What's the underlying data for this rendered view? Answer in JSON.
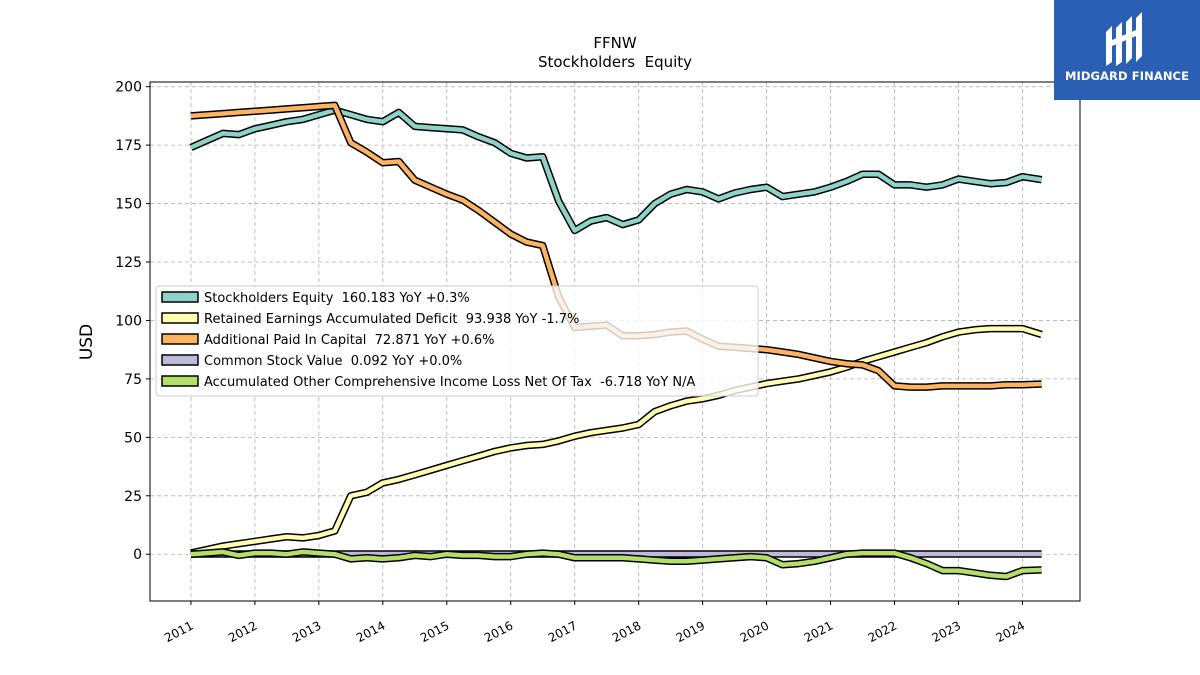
{
  "brand": {
    "name": "MIDGARD FINANCE",
    "color": "#2b5fb3",
    "icon": "midgard-logo-icon"
  },
  "chart_data": {
    "type": "line",
    "title": "FFNW",
    "subtitle": "Stockholders  Equity",
    "ylabel": "USD",
    "xlabel": "",
    "ylim": [
      -20,
      202
    ],
    "xlim": [
      2010.36,
      2024.9
    ],
    "yticks": [
      0,
      25,
      50,
      75,
      100,
      125,
      150,
      175,
      200
    ],
    "xticks": [
      "2011",
      "2012",
      "2013",
      "2014",
      "2015",
      "2016",
      "2017",
      "2018",
      "2019",
      "2020",
      "2021",
      "2022",
      "2023",
      "2024"
    ],
    "grid": true,
    "legend_position": "center-left",
    "x": [
      2011.0,
      2011.25,
      2011.5,
      2011.75,
      2012.0,
      2012.25,
      2012.5,
      2012.75,
      2013.0,
      2013.25,
      2013.5,
      2013.75,
      2014.0,
      2014.25,
      2014.5,
      2014.75,
      2015.0,
      2015.25,
      2015.5,
      2015.75,
      2016.0,
      2016.25,
      2016.5,
      2016.75,
      2017.0,
      2017.25,
      2017.5,
      2017.75,
      2018.0,
      2018.25,
      2018.5,
      2018.75,
      2019.0,
      2019.25,
      2019.5,
      2019.75,
      2020.0,
      2020.25,
      2020.5,
      2020.75,
      2021.0,
      2021.25,
      2021.5,
      2021.75,
      2022.0,
      2022.25,
      2022.5,
      2022.75,
      2023.0,
      2023.25,
      2023.5,
      2023.75,
      2024.0,
      2024.3
    ],
    "series": [
      {
        "name": "Stockholders Equity",
        "legend": "Stockholders Equity  160.183 YoY +0.3%",
        "color": "#8dd3c7",
        "values": [
          174,
          177,
          180,
          179.5,
          182,
          183.5,
          185,
          186,
          188,
          190,
          188,
          186,
          185,
          189,
          183,
          182.5,
          182,
          181.5,
          178.5,
          176,
          171.5,
          169.5,
          170,
          151,
          138.5,
          142.5,
          144,
          141,
          143,
          150,
          154,
          156,
          155,
          152,
          154.5,
          156,
          157,
          153,
          154,
          155,
          157,
          159.5,
          162.5,
          162.5,
          158,
          158,
          157,
          158,
          160.5,
          159.5,
          158.5,
          159,
          161.5,
          160.2
        ]
      },
      {
        "name": "Retained Earnings Accumulated Deficit",
        "legend": "Retained Earnings Accumulated Deficit  93.938 YoY -1.7%",
        "color": "#ffffb3",
        "values": [
          0.5,
          2,
          3.5,
          4.5,
          5.5,
          6.5,
          7.5,
          7,
          8,
          10,
          25,
          26.5,
          30.5,
          32,
          34,
          36,
          38,
          40,
          42,
          44,
          45.5,
          46.5,
          47,
          48.5,
          50.5,
          52,
          53,
          54,
          55.5,
          61,
          63.5,
          65.5,
          66.5,
          68,
          70,
          71.5,
          73,
          74,
          75,
          76.5,
          78,
          80,
          82.5,
          84.5,
          86.5,
          88.5,
          90.5,
          93,
          95,
          96,
          96.5,
          96.5,
          96.5,
          94
        ]
      },
      {
        "name": "Additional Paid In Capital",
        "legend": "Additional Paid In Capital  72.871 YoY +0.6%",
        "color": "#fdb462",
        "values": [
          187.5,
          188,
          188.5,
          189,
          189.5,
          190,
          190.5,
          191,
          191.5,
          192,
          176,
          172,
          167.5,
          168,
          160,
          157,
          154,
          151.5,
          147,
          142,
          137,
          133.5,
          132,
          110,
          97,
          97.5,
          98,
          93.5,
          93.5,
          94,
          95,
          95.5,
          92,
          89,
          88.5,
          88,
          87.5,
          86.5,
          85.5,
          84,
          82.5,
          81.5,
          81,
          78.5,
          72,
          71.5,
          71.5,
          72,
          72,
          72,
          72,
          72.5,
          72.5,
          72.8
        ]
      },
      {
        "name": "Common Stock Value",
        "legend": "Common Stock Value  0.092 YoY +0.0%",
        "color": "#bebada",
        "values": [
          0.1,
          0.1,
          0.1,
          0.1,
          0.1,
          0.1,
          0.1,
          0.1,
          0.1,
          0.1,
          0.1,
          0.1,
          0.1,
          0.1,
          0.1,
          0.1,
          0.1,
          0.1,
          0.1,
          0.1,
          0.1,
          0.1,
          0.1,
          0.1,
          0.1,
          0.1,
          0.1,
          0.1,
          0.1,
          0.1,
          0.1,
          0.1,
          0.1,
          0.1,
          0.1,
          0.1,
          0.1,
          0.1,
          0.1,
          0.1,
          0.1,
          0.1,
          0.1,
          0.1,
          0.1,
          0.1,
          0.1,
          0.1,
          0.1,
          0.1,
          0.1,
          0.1,
          0.1,
          0.09
        ]
      },
      {
        "name": "Accumulated Other Comprehensive Income Loss Net Of Tax",
        "legend": "Accumulated Other Comprehensive Income Loss Net Of Tax  -6.718 YoY N/A",
        "color": "#b3de69",
        "values": [
          0,
          0.5,
          1,
          -0.5,
          0.5,
          0.5,
          0,
          1,
          0.5,
          0,
          -2,
          -1.5,
          -2,
          -1.5,
          -0.5,
          -1,
          0,
          -0.5,
          -0.5,
          -1,
          -1,
          0,
          0.5,
          0,
          -1.5,
          -1.5,
          -1.5,
          -1.5,
          -2,
          -2.5,
          -3,
          -3,
          -2.5,
          -2,
          -1.5,
          -1,
          -1.5,
          -4.5,
          -4,
          -3,
          -1.5,
          0,
          0.5,
          0.5,
          0.5,
          -1.5,
          -4,
          -7,
          -7,
          -8,
          -9,
          -9.5,
          -7,
          -6.7
        ]
      }
    ]
  }
}
